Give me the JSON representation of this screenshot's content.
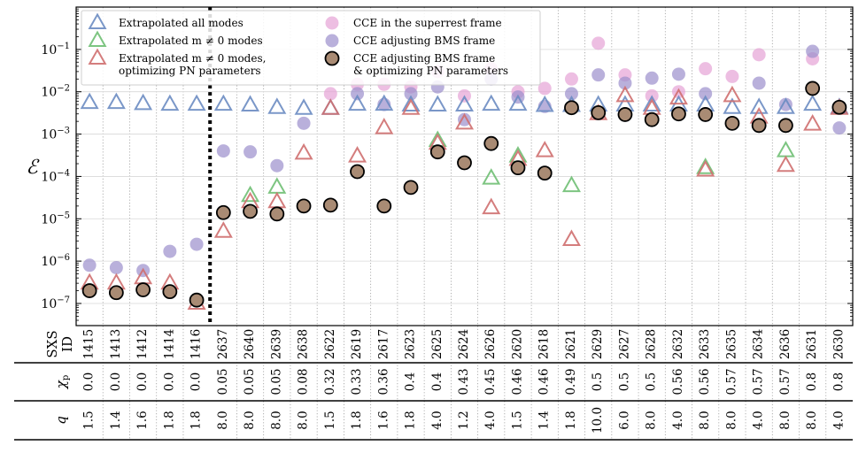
{
  "chart_data": {
    "type": "scatter",
    "yscale": "log",
    "ylim": [
      3e-08,
      1
    ],
    "ylabel": "ℰ",
    "ytick_values": [
      1e-07,
      1e-06,
      1e-05,
      0.0001,
      0.001,
      0.01,
      0.1
    ],
    "ytick_labels": [
      {
        "base": "10",
        "exp": "−7"
      },
      {
        "base": "10",
        "exp": "−6"
      },
      {
        "base": "10",
        "exp": "−5"
      },
      {
        "base": "10",
        "exp": "−4"
      },
      {
        "base": "10",
        "exp": "−3"
      },
      {
        "base": "10",
        "exp": "−2"
      },
      {
        "base": "10",
        "exp": "−1"
      }
    ],
    "row_labels": {
      "sxs": [
        "SXS",
        "ID"
      ],
      "chi": {
        "main": "χ",
        "sub": "p"
      },
      "q": "q"
    },
    "sxs_ids": [
      "1415",
      "1413",
      "1412",
      "1414",
      "1416",
      "2637",
      "2640",
      "2639",
      "2638",
      "2622",
      "2619",
      "2617",
      "2623",
      "2625",
      "2624",
      "2626",
      "2620",
      "2618",
      "2621",
      "2629",
      "2627",
      "2628",
      "2632",
      "2633",
      "2635",
      "2634",
      "2636",
      "2631",
      "2630"
    ],
    "chi_p": [
      "0.0",
      "0.0",
      "0.0",
      "0.0",
      "0.0",
      "0.05",
      "0.05",
      "0.05",
      "0.08",
      "0.32",
      "0.33",
      "0.36",
      "0.4",
      "0.4",
      "0.43",
      "0.45",
      "0.46",
      "0.46",
      "0.49",
      "0.5",
      "0.5",
      "0.5",
      "0.56",
      "0.56",
      "0.57",
      "0.57",
      "0.57",
      "0.8",
      "0.8"
    ],
    "q": [
      "1.5",
      "1.4",
      "1.6",
      "1.8",
      "1.8",
      "8.0",
      "8.0",
      "8.0",
      "8.0",
      "1.5",
      "1.8",
      "1.6",
      "1.8",
      "4.0",
      "1.2",
      "4.0",
      "1.5",
      "1.4",
      "1.8",
      "10.0",
      "6.0",
      "8.0",
      "4.0",
      "8.0",
      "8.0",
      "4.0",
      "8.0",
      "8.0",
      "4.0"
    ],
    "separator_after_index": 4,
    "legend": {
      "position": "top-left",
      "entries": [
        {
          "series": 0,
          "lines": [
            "Extrapolated all modes"
          ]
        },
        {
          "series": 1,
          "lines": [
            "Extrapolated m ≠ 0 modes"
          ]
        },
        {
          "series": 2,
          "lines": [
            "Extrapolated m ≠ 0 modes,",
            "optimizing PN parameters"
          ]
        },
        {
          "series": 3,
          "lines": [
            "CCE in the superrest frame"
          ]
        },
        {
          "series": 4,
          "lines": [
            "CCE adjusting BMS frame"
          ]
        },
        {
          "series": 5,
          "lines": [
            "CCE adjusting BMS frame",
            "& optimizing PN parameters"
          ]
        }
      ]
    },
    "series": [
      {
        "name": "Extrapolated all modes",
        "marker": "triangle",
        "color": "#6b8cc2",
        "values": [
          0.0055,
          0.0055,
          0.0052,
          0.005,
          0.005,
          0.005,
          0.0048,
          0.0042,
          0.004,
          0.004,
          0.005,
          0.005,
          0.0048,
          0.0048,
          0.0048,
          0.005,
          0.005,
          0.0047,
          0.0047,
          0.0048,
          0.0048,
          0.0048,
          0.0048,
          0.0048,
          0.0042,
          0.0042,
          0.0042,
          0.005,
          0.0042
        ]
      },
      {
        "name": "Extrapolated m ≠ 0 modes",
        "marker": "triangle",
        "color": "#6fbf73",
        "values": [
          null,
          null,
          null,
          null,
          null,
          null,
          3.5e-05,
          5.5e-05,
          null,
          null,
          null,
          null,
          null,
          0.0007,
          null,
          9e-05,
          0.0003,
          null,
          6e-05,
          null,
          null,
          null,
          null,
          0.00016,
          null,
          null,
          0.0004,
          null,
          null
        ]
      },
      {
        "name": "Extrapolated m ≠ 0 modes, optimizing PN parameters",
        "marker": "triangle",
        "color": "#cf6f6f",
        "values": [
          3e-07,
          3e-07,
          4e-07,
          3e-07,
          1e-07,
          5e-06,
          2.5e-05,
          2.5e-05,
          0.00035,
          0.004,
          0.0003,
          0.0014,
          0.004,
          0.0006,
          0.0018,
          1.8e-05,
          0.00025,
          0.0004,
          3.2e-06,
          0.003,
          0.008,
          0.004,
          0.007,
          0.00014,
          0.008,
          0.0025,
          0.00018,
          0.0017,
          0.004
        ]
      },
      {
        "name": "CCE in the superrest frame",
        "marker": "circle",
        "color": "#e6a2d6",
        "values": [
          null,
          null,
          null,
          null,
          null,
          null,
          null,
          null,
          null,
          0.009,
          0.015,
          0.015,
          0.013,
          0.03,
          0.008,
          0.035,
          0.01,
          0.012,
          0.02,
          0.14,
          0.025,
          0.008,
          0.01,
          0.035,
          0.023,
          0.075,
          null,
          0.06,
          null
        ]
      },
      {
        "name": "CCE adjusting BMS frame",
        "marker": "circle",
        "color": "#9b8fcc",
        "values": [
          8e-07,
          7e-07,
          6e-07,
          1.7e-06,
          2.5e-06,
          0.0004,
          0.00038,
          0.00018,
          0.0018,
          null,
          0.009,
          0.005,
          0.009,
          0.013,
          0.0022,
          0.02,
          0.0075,
          0.0045,
          0.009,
          0.025,
          0.016,
          0.021,
          0.026,
          0.009,
          null,
          0.016,
          0.005,
          0.09,
          0.0014
        ]
      },
      {
        "name": "CCE adjusting BMS frame & optimizing PN parameters",
        "marker": "circle",
        "color": "#a98b74",
        "values": [
          2e-07,
          1.8e-07,
          2.1e-07,
          1.9e-07,
          1.2e-07,
          1.4e-05,
          1.5e-05,
          1.3e-05,
          2e-05,
          2.1e-05,
          0.00013,
          2e-05,
          5.5e-05,
          0.00038,
          0.00021,
          0.0006,
          0.00016,
          0.00012,
          0.0042,
          0.0032,
          0.0029,
          0.0022,
          0.003,
          0.0029,
          0.0018,
          0.0016,
          0.0016,
          0.012,
          0.0043
        ]
      }
    ]
  }
}
